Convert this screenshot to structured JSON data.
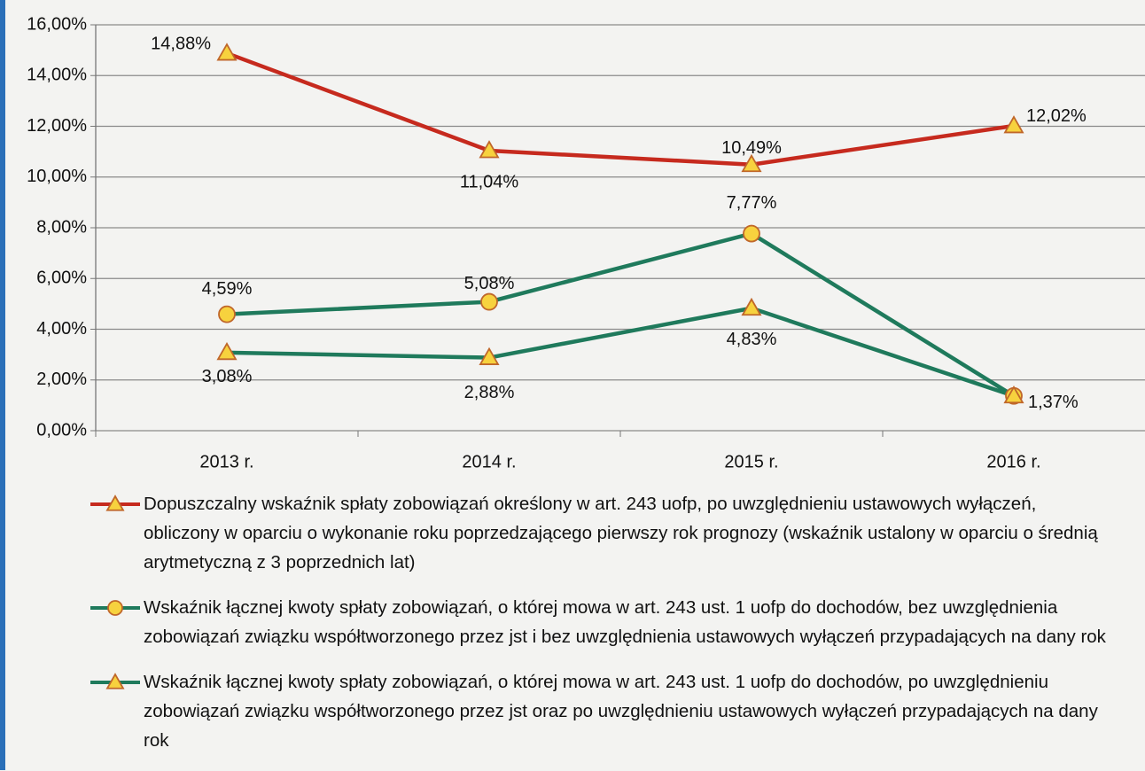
{
  "chart_data": {
    "type": "line",
    "categories": [
      "2013 r.",
      "2014 r.",
      "2015 r.",
      "2016 r."
    ],
    "ylim": [
      0,
      16
    ],
    "yticks": [
      {
        "value": 0,
        "label": "0,00%"
      },
      {
        "value": 2,
        "label": "2,00%"
      },
      {
        "value": 4,
        "label": "4,00%"
      },
      {
        "value": 6,
        "label": "6,00%"
      },
      {
        "value": 8,
        "label": "8,00%"
      },
      {
        "value": 10,
        "label": "10,00%"
      },
      {
        "value": 12,
        "label": "12,00%"
      },
      {
        "value": 14,
        "label": "14,00%"
      },
      {
        "value": 16,
        "label": "16,00%"
      }
    ],
    "grid": true,
    "series": [
      {
        "name": "Dopuszczalny wskaźnik spłaty zobowiązań określony w art. 243 uofp, po uwzględnieniu ustawowych wyłączeń, obliczony w oparciu o wykonanie roku poprzedzającego pierwszy rok prognozy (wskaźnik ustalony w oparciu o średnią arytmetyczną z 3 poprzednich lat)",
        "color": "#c62a1e",
        "marker": "triangle",
        "values": [
          14.88,
          11.04,
          10.49,
          12.02
        ],
        "value_labels": [
          "14,88%",
          "11,04%",
          "10,49%",
          "12,02%"
        ]
      },
      {
        "name": "Wskaźnik łącznej kwoty spłaty zobowiązań, o której mowa w art. 243 ust. 1 uofp do dochodów, bez uwzględnienia zobowiązań związku współtworzonego przez jst i bez uwzględnienia ustawowych wyłączeń przypadających na dany rok",
        "color": "#1f7a5c",
        "marker": "circle",
        "values": [
          4.59,
          5.08,
          7.77,
          1.37
        ],
        "value_labels": [
          "4,59%",
          "5,08%",
          "7,77%",
          "1,37%"
        ]
      },
      {
        "name": "Wskaźnik łącznej kwoty spłaty zobowiązań, o której mowa w art. 243 ust. 1 uofp do dochodów, po uwzględnieniu zobowiązań związku współtworzonego przez jst oraz po uwzględnieniu ustawowych wyłączeń przypadających na dany rok",
        "color": "#1f7a5c",
        "marker": "triangle",
        "values": [
          3.08,
          2.88,
          4.83,
          1.37
        ],
        "value_labels": [
          "3,08%",
          "2,88%",
          "4,83%",
          "1,37%"
        ]
      }
    ]
  }
}
